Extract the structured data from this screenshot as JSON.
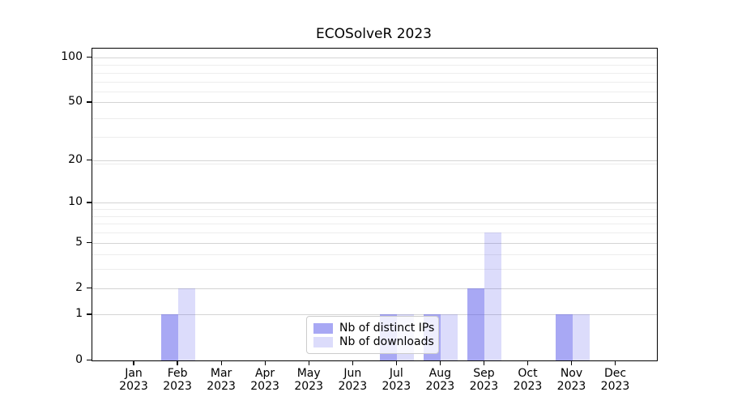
{
  "title": "ECOSolveR 2023",
  "chart_data": {
    "type": "bar",
    "title": "ECOSolveR 2023",
    "categories": [
      "Jan",
      "Feb",
      "Mar",
      "Apr",
      "May",
      "Jun",
      "Jul",
      "Aug",
      "Sep",
      "Oct",
      "Nov",
      "Dec"
    ],
    "year_label": "2023",
    "series": [
      {
        "name": "Nb of distinct IPs",
        "values": [
          0,
          1,
          0,
          0,
          0,
          0,
          1,
          1,
          2,
          0,
          1,
          0
        ],
        "color": "rgba(82,82,234,0.5)",
        "color_hex": "#a9a9f4"
      },
      {
        "name": "Nb of downloads",
        "values": [
          0,
          2,
          0,
          0,
          0,
          0,
          1,
          1,
          6,
          0,
          1,
          0
        ],
        "color": "rgba(82,82,234,0.2)",
        "color_hex": "#dcdcfa"
      }
    ],
    "yticks": [
      0,
      1,
      2,
      5,
      10,
      20,
      50,
      100
    ],
    "minor_gridlines": [
      3,
      4,
      6,
      7,
      8,
      9,
      19,
      29,
      39,
      59,
      69,
      79,
      89
    ],
    "scale": "log1p",
    "ylim": [
      0,
      114
    ],
    "grid": true,
    "legend_position": "lower center",
    "colors": {
      "major_grid": "#d4d4d4",
      "minor_grid": "#ededed",
      "axis": "#000000",
      "text": "#000000"
    }
  }
}
